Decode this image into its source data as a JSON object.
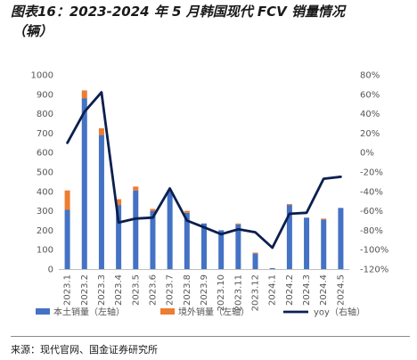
{
  "figure": {
    "title_line1": "图表16：2023-2024 年 5 月韩国现代 FCV 销量情况",
    "title_line2": "（辆）",
    "source": "来源：现代官网、国金证券研究所"
  },
  "chart_data": {
    "type": "bar",
    "stacked": true,
    "categories": [
      "2023.1",
      "2023.2",
      "2023.3",
      "2023.4",
      "2023.5",
      "2023.6",
      "2023.7",
      "2023.8",
      "2023.9",
      "2023.10",
      "2023.11",
      "2023.12",
      "2024.1",
      "2024.2",
      "2024.3",
      "2024.4",
      "2024.5"
    ],
    "series": [
      {
        "name": "本土销量（左轴）",
        "kind": "bar",
        "axis": "left",
        "color": "#4472C4",
        "values": [
          305,
          880,
          690,
          330,
          405,
          300,
          400,
          290,
          235,
          200,
          230,
          80,
          5,
          330,
          265,
          255,
          315
        ]
      },
      {
        "name": "境外销量（左轴）",
        "kind": "bar",
        "axis": "left",
        "color": "#ED7D31",
        "values": [
          100,
          40,
          35,
          30,
          20,
          10,
          5,
          10,
          0,
          0,
          5,
          5,
          0,
          5,
          0,
          5,
          0
        ]
      },
      {
        "name": "yoy（右轴）",
        "kind": "line",
        "axis": "right",
        "color": "#0B1F4F",
        "values": [
          10,
          42,
          62,
          -72,
          -68,
          -67,
          -37,
          -70,
          -77,
          -84,
          -79,
          -82,
          -98,
          -63,
          -62,
          -27,
          -25
        ]
      }
    ],
    "y_left": {
      "min": 0,
      "max": 1000,
      "step": 100,
      "ticks": [
        "0",
        "100",
        "200",
        "300",
        "400",
        "500",
        "600",
        "700",
        "800",
        "900",
        "1000"
      ]
    },
    "y_right": {
      "min": -120,
      "max": 80,
      "step": 20,
      "ticks": [
        "-120%",
        "-100%",
        "-80%",
        "-60%",
        "-40%",
        "-20%",
        "0%",
        "20%",
        "40%",
        "60%",
        "80%"
      ]
    },
    "grid": false,
    "legend_position": "bottom"
  }
}
